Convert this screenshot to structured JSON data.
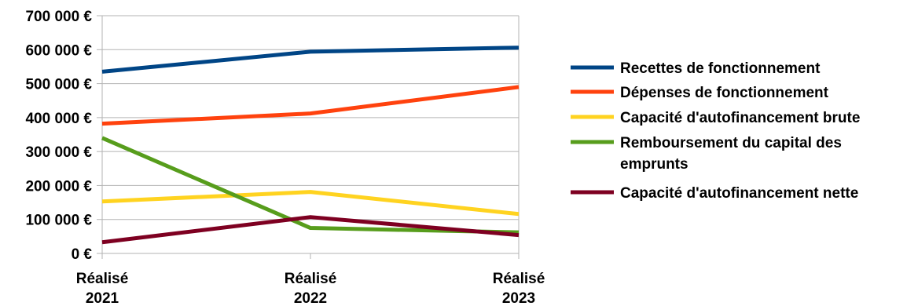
{
  "chart_data": {
    "type": "line",
    "title": "",
    "xlabel": "",
    "ylabel": "",
    "categories": [
      "Réalisé 2021",
      "Réalisé 2022",
      "Réalisé 2023"
    ],
    "category_lines": [
      [
        "Réalisé",
        "2021"
      ],
      [
        "Réalisé",
        "2022"
      ],
      [
        "Réalisé",
        "2023"
      ]
    ],
    "ylim": [
      0,
      700000
    ],
    "yticks": [
      0,
      100000,
      200000,
      300000,
      400000,
      500000,
      600000,
      700000
    ],
    "ytick_labels": [
      "0 €",
      "100 000 €",
      "200 000 €",
      "300 000 €",
      "400 000 €",
      "500 000 €",
      "600 000 €",
      "700 000 €"
    ],
    "grid": true,
    "legend_position": "right",
    "series": [
      {
        "name": "Recettes de fonctionnement",
        "legend_lines": [
          "Recettes de fonctionnement"
        ],
        "color": "#004586",
        "values": [
          535000,
          594000,
          606000
        ]
      },
      {
        "name": "Dépenses de fonctionnement",
        "legend_lines": [
          "Dépenses de fonctionnement"
        ],
        "color": "#ff420e",
        "values": [
          382000,
          412000,
          490000
        ]
      },
      {
        "name": "Capacité d'autofinancement brute",
        "legend_lines": [
          "Capacité d'autofinancement brute"
        ],
        "color": "#ffd320",
        "values": [
          153000,
          181000,
          116000
        ]
      },
      {
        "name": "Remboursement du capital des emprunts",
        "legend_lines": [
          "Remboursement du capital des",
          "emprunts"
        ],
        "color": "#579d1c",
        "values": [
          340000,
          75000,
          62000
        ]
      },
      {
        "name": "Capacité d'autofinancement nette",
        "legend_lines": [
          "Capacité d'autofinancement nette"
        ],
        "color": "#7e0021",
        "values": [
          33000,
          107000,
          54000
        ]
      }
    ]
  }
}
